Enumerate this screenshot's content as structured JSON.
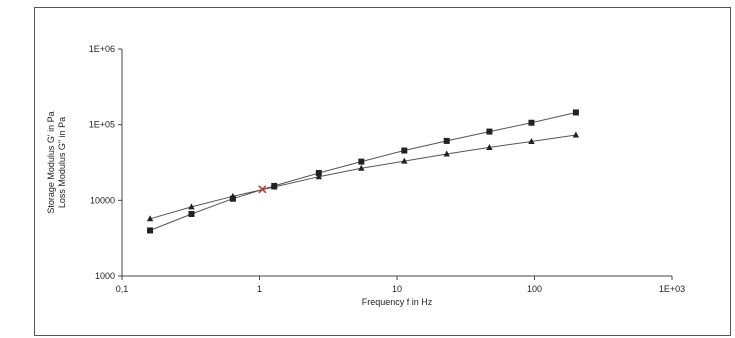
{
  "chart_data": {
    "type": "line",
    "title": "",
    "xlabel": "Frequency f in Hz",
    "ylabel_lines": [
      "Storage Modulus G' in Pa",
      "Loss Modulus G\" in Pa"
    ],
    "x_scale": "log",
    "y_scale": "log",
    "xlim": [
      0.1,
      1000
    ],
    "ylim": [
      1000,
      1000000
    ],
    "x_tick_labels": [
      "0,1",
      "1",
      "10",
      "100",
      "1E+03"
    ],
    "y_tick_labels": [
      "1000",
      "10000",
      "1E+05",
      "1E+06"
    ],
    "grid": false,
    "legend": "none",
    "series": [
      {
        "marker": "square",
        "color": "#222222",
        "x": [
          0.16,
          0.32,
          0.64,
          1.28,
          2.7,
          5.5,
          11.3,
          23,
          47,
          95,
          200
        ],
        "y": [
          4000,
          6600,
          10500,
          15500,
          23000,
          32500,
          45500,
          61000,
          81000,
          106000,
          145000
        ]
      },
      {
        "marker": "triangle",
        "color": "#222222",
        "x": [
          0.16,
          0.32,
          0.64,
          1.28,
          2.7,
          5.5,
          11.3,
          23,
          47,
          95,
          200
        ],
        "y": [
          5700,
          8200,
          11300,
          15000,
          20500,
          26500,
          33000,
          41000,
          50000,
          60000,
          73000
        ]
      }
    ],
    "annotations": [
      {
        "marker": "cross",
        "color": "#c0392b",
        "x": 1.05,
        "y": 14000
      }
    ]
  }
}
